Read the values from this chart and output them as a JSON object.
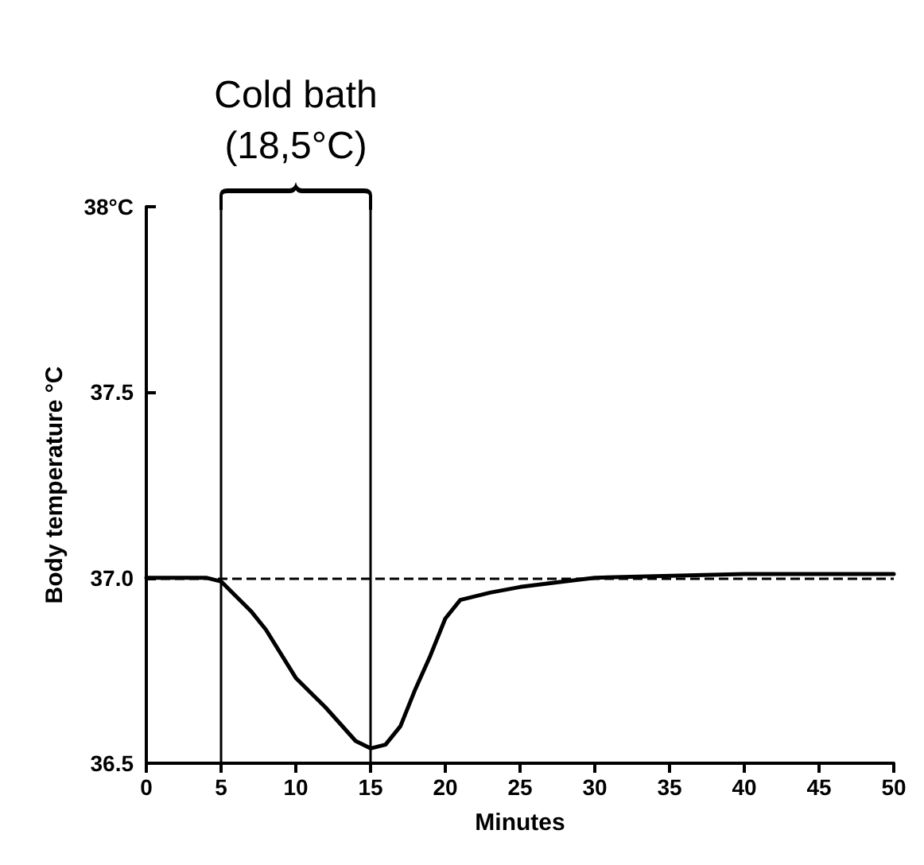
{
  "chart_data": {
    "type": "line",
    "xlabel": "Minutes",
    "ylabel": "Body temperature °C",
    "xlim": [
      0,
      50
    ],
    "xticks": [
      0,
      5,
      10,
      15,
      20,
      25,
      30,
      35,
      40,
      45,
      50
    ],
    "ylim": [
      36.5,
      38
    ],
    "yticks": [
      36.5,
      {
        "value": 37,
        "label": "37.0"
      },
      37.5,
      {
        "value": 38,
        "label": "38°C"
      }
    ],
    "grid": false,
    "marker": "none",
    "line_style": "solid",
    "series": [
      {
        "color": "#000000",
        "x": [
          0,
          4,
          5,
          6,
          7,
          8,
          10,
          12,
          14,
          15,
          16,
          17,
          18,
          19,
          20,
          21,
          23,
          25,
          28,
          30,
          40,
          50
        ],
        "values": [
          37,
          37,
          36.99,
          36.95,
          36.91,
          36.86,
          36.73,
          36.65,
          36.56,
          36.54,
          36.55,
          36.6,
          36.7,
          36.79,
          36.89,
          36.94,
          36.96,
          36.975,
          36.99,
          37,
          37.01,
          37.01
        ]
      }
    ],
    "ref_lines": [
      {
        "axis": "y",
        "value": 37,
        "label": null,
        "color": "#000000",
        "line_style": "dashed"
      },
      {
        "axis": "x",
        "value": 5,
        "label": null,
        "color": "#000000",
        "line_style": "solid"
      },
      {
        "axis": "x",
        "value": 15,
        "label": null,
        "color": "#000000",
        "line_style": "solid"
      }
    ],
    "annotations": [
      "Cold bath\n(18,5°C)"
    ]
  }
}
